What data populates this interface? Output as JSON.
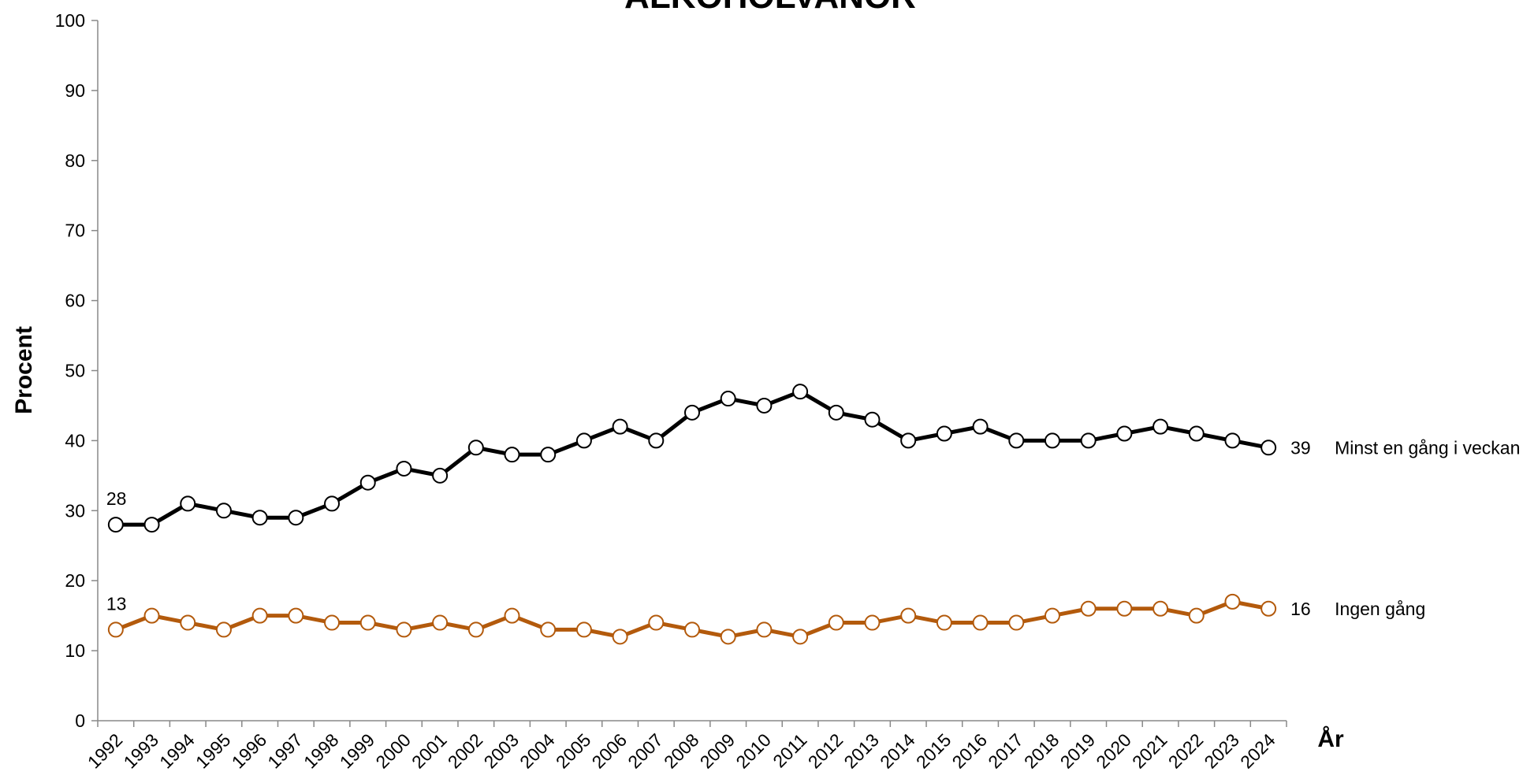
{
  "chart_data": {
    "type": "line",
    "title": "ALKOHOLVANOR",
    "xlabel": "År",
    "ylabel": "Procent",
    "categories": [
      "1992",
      "1993",
      "1994",
      "1995",
      "1996",
      "1997",
      "1998",
      "1999",
      "2000",
      "2001",
      "2002",
      "2003",
      "2004",
      "2005",
      "2006",
      "2007",
      "2008",
      "2009",
      "2010",
      "2011",
      "2012",
      "2013",
      "2014",
      "2015",
      "2016",
      "2017",
      "2018",
      "2019",
      "2020",
      "2021",
      "2022",
      "2023",
      "2024"
    ],
    "series": [
      {
        "name": "Minst en gång i veckan",
        "color": "#000000",
        "values": [
          28,
          28,
          31,
          30,
          29,
          29,
          31,
          34,
          36,
          35,
          39,
          38,
          38,
          40,
          42,
          40,
          44,
          46,
          45,
          47,
          44,
          43,
          40,
          41,
          42,
          40,
          40,
          40,
          41,
          42,
          41,
          40,
          39
        ]
      },
      {
        "name": "Ingen gång",
        "color": "#b35a0c",
        "values": [
          13,
          15,
          14,
          13,
          15,
          15,
          14,
          14,
          13,
          14,
          13,
          15,
          13,
          13,
          12,
          14,
          13,
          12,
          13,
          12,
          14,
          14,
          15,
          14,
          14,
          14,
          15,
          16,
          16,
          16,
          15,
          17,
          16
        ]
      }
    ],
    "ylim": [
      0,
      100
    ],
    "yticks": [
      0,
      10,
      20,
      30,
      40,
      50,
      60,
      70,
      80,
      90,
      100
    ]
  }
}
